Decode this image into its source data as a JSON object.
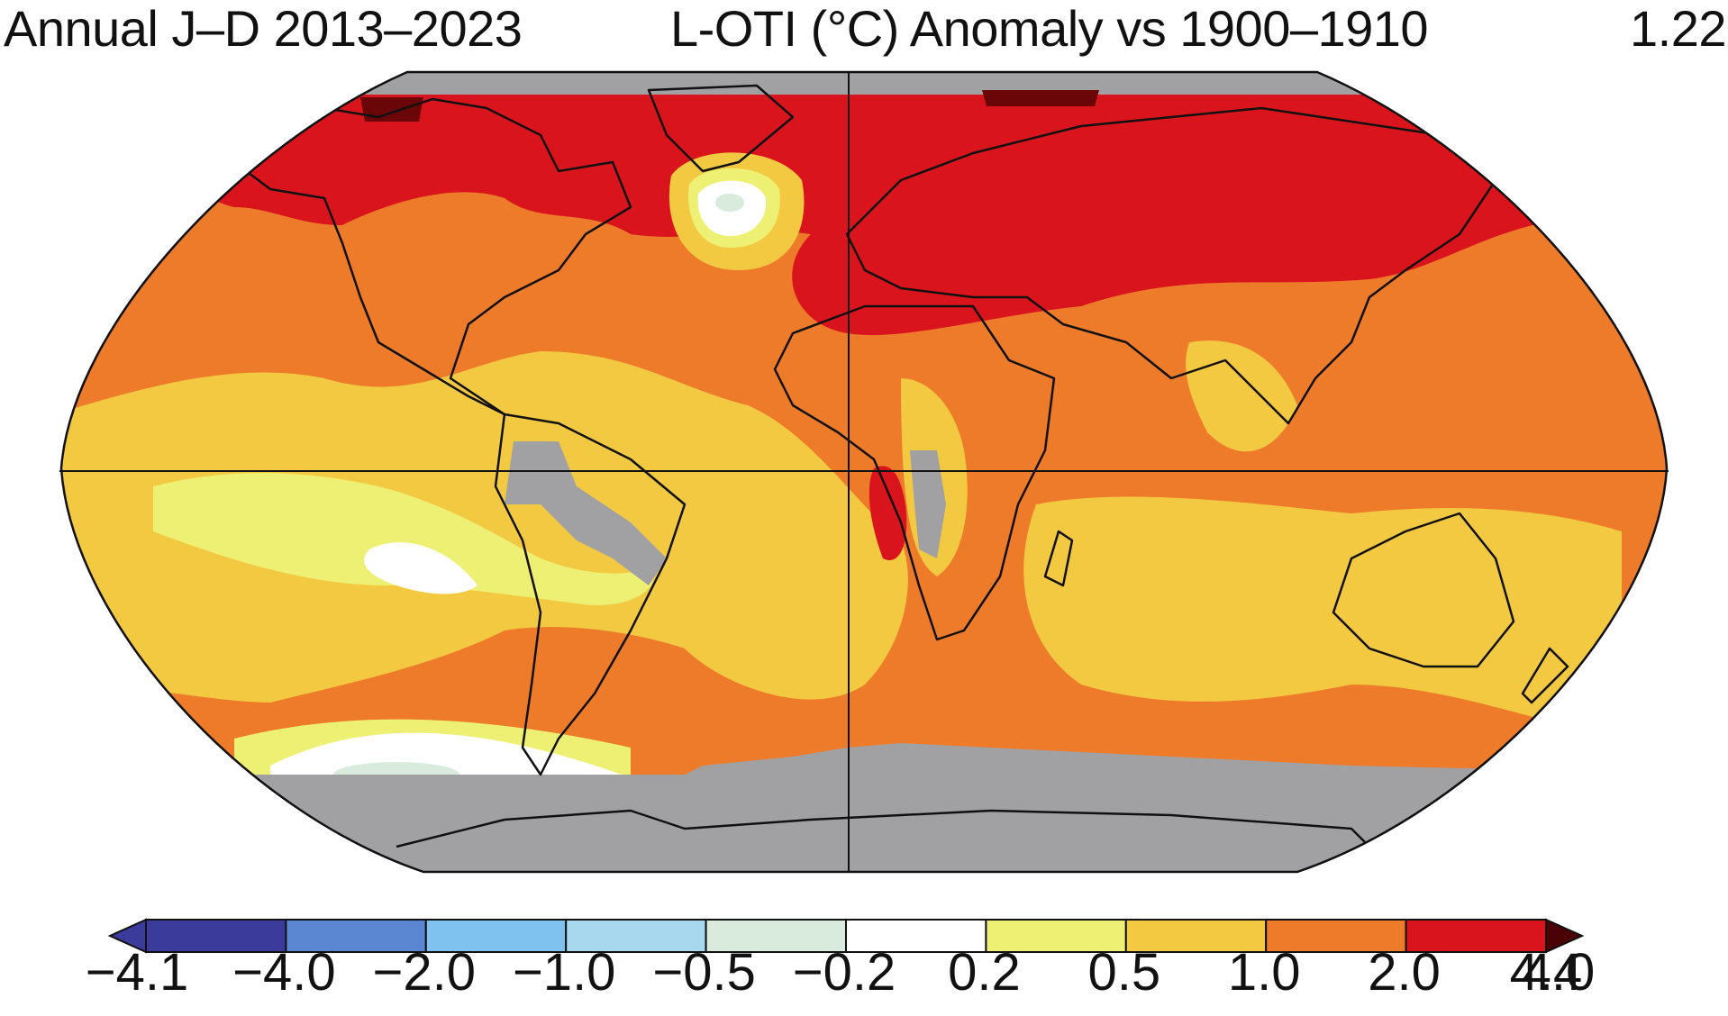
{
  "title": {
    "period": "Annual J–D 2013–2023",
    "metric": "L-OTI (°C) Anomaly vs 1900–1910",
    "global_mean": "1.22"
  },
  "colorbar": {
    "labels": [
      "−4.1",
      "−4.0",
      "−2.0",
      "−1.0",
      "−0.5",
      "−0.2",
      "0.2",
      "0.5",
      "1.0",
      "2.0",
      "4.0",
      "4.4"
    ],
    "colors": [
      "#3b3b9c",
      "#5b86d2",
      "#7fc2f0",
      "#a7d8ee",
      "#d8ebdc",
      "#ffffff",
      "#eef074",
      "#f2c940",
      "#ee7b2a",
      "#d9141c",
      "#6a0608",
      "#4a0205"
    ],
    "missing_color": "#a1a1a4"
  },
  "map": {
    "projection": "Robinson",
    "background_color": "#ee7b2a",
    "coastline_color": "#111111"
  }
}
